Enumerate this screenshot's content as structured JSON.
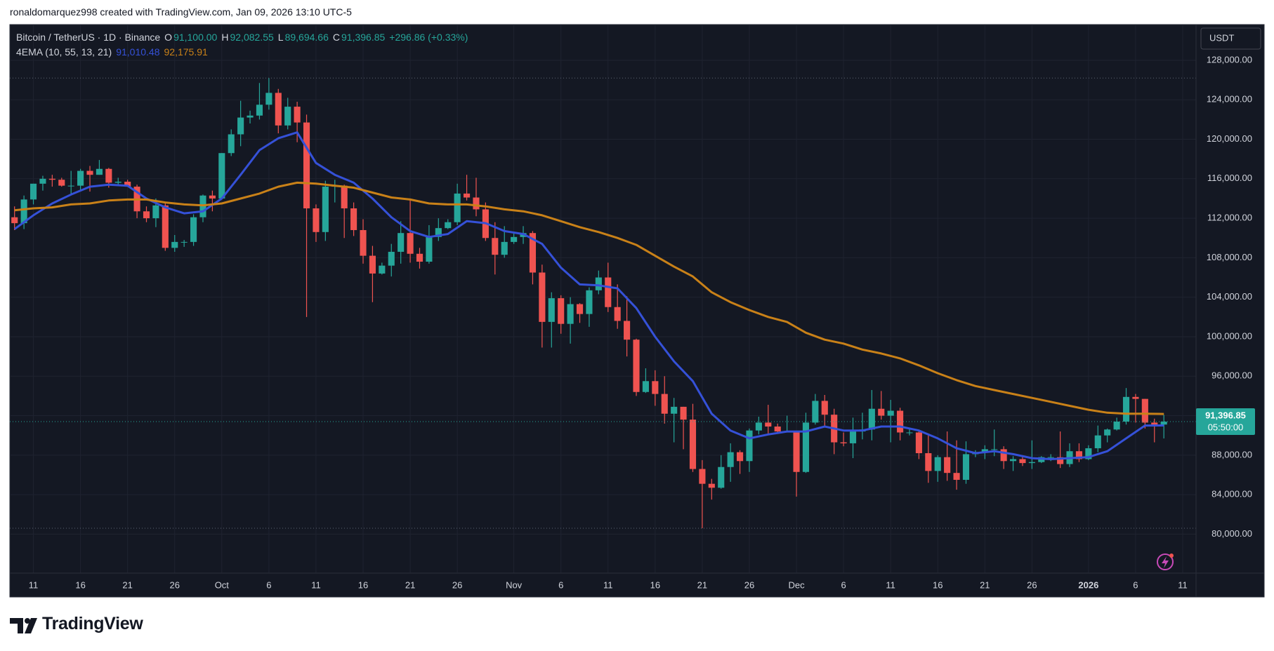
{
  "header": {
    "attribution": "ronaldomarquez998 created with TradingView.com, Jan 09, 2026 13:10 UTC-5"
  },
  "chart_data": {
    "type": "candlestick",
    "symbol": "Bitcoin / TetherUS · 1D · Binance",
    "legend": {
      "o_label": "O",
      "open": "91,100.00",
      "h_label": "H",
      "high": "92,082.55",
      "l_label": "L",
      "low": "89,694.66",
      "c_label": "C",
      "close": "91,396.85",
      "change": "+296.86 (+0.33%)"
    },
    "indicator": "4EMA (10, 55, 13, 21)",
    "indicator_values": [
      "91,010.48",
      "92,175.91"
    ],
    "currency": "USDT",
    "price_label": "91,396.85",
    "countdown": "05:50:00",
    "up_color": "#26a69a",
    "down_color": "#ef5350",
    "grid": true,
    "x": [
      "2025-09-09",
      "2025-09-10",
      "2025-09-11",
      "2025-09-12",
      "2025-09-13",
      "2025-09-14",
      "2025-09-15",
      "2025-09-16",
      "2025-09-17",
      "2025-09-18",
      "2025-09-19",
      "2025-09-20",
      "2025-09-21",
      "2025-09-22",
      "2025-09-23",
      "2025-09-24",
      "2025-09-25",
      "2025-09-26",
      "2025-09-27",
      "2025-09-28",
      "2025-09-29",
      "2025-09-30",
      "2025-10-01",
      "2025-10-02",
      "2025-10-03",
      "2025-10-04",
      "2025-10-05",
      "2025-10-06",
      "2025-10-07",
      "2025-10-08",
      "2025-10-09",
      "2025-10-10",
      "2025-10-11",
      "2025-10-12",
      "2025-10-13",
      "2025-10-14",
      "2025-10-15",
      "2025-10-16",
      "2025-10-17",
      "2025-10-18",
      "2025-10-19",
      "2025-10-20",
      "2025-10-21",
      "2025-10-22",
      "2025-10-23",
      "2025-10-24",
      "2025-10-25",
      "2025-10-26",
      "2025-10-27",
      "2025-10-28",
      "2025-10-29",
      "2025-10-30",
      "2025-10-31",
      "2025-11-01",
      "2025-11-02",
      "2025-11-03",
      "2025-11-04",
      "2025-11-05",
      "2025-11-06",
      "2025-11-07",
      "2025-11-08",
      "2025-11-09",
      "2025-11-10",
      "2025-11-11",
      "2025-11-12",
      "2025-11-13",
      "2025-11-14",
      "2025-11-15",
      "2025-11-16",
      "2025-11-17",
      "2025-11-18",
      "2025-11-19",
      "2025-11-20",
      "2025-11-21",
      "2025-11-22",
      "2025-11-23",
      "2025-11-24",
      "2025-11-25",
      "2025-11-26",
      "2025-11-27",
      "2025-11-28",
      "2025-11-29",
      "2025-11-30",
      "2025-12-01",
      "2025-12-02",
      "2025-12-03",
      "2025-12-04",
      "2025-12-05",
      "2025-12-06",
      "2025-12-07",
      "2025-12-08",
      "2025-12-09",
      "2025-12-10",
      "2025-12-11",
      "2025-12-12",
      "2025-12-13",
      "2025-12-14",
      "2025-12-15",
      "2025-12-16",
      "2025-12-17",
      "2025-12-18",
      "2025-12-19",
      "2025-12-20",
      "2025-12-21",
      "2025-12-22",
      "2025-12-23",
      "2025-12-24",
      "2025-12-25",
      "2025-12-26",
      "2025-12-27",
      "2025-12-28",
      "2025-12-29",
      "2025-12-30",
      "2025-12-31",
      "2026-01-01",
      "2026-01-02",
      "2026-01-03",
      "2026-01-04",
      "2026-01-05",
      "2026-01-06",
      "2026-01-07",
      "2026-01-08",
      "2026-01-09"
    ],
    "open": [
      112100,
      111500,
      113900,
      115500,
      116000,
      115900,
      115300,
      115300,
      116800,
      116400,
      117000,
      115600,
      115700,
      115200,
      112700,
      112000,
      113300,
      109000,
      109600,
      109600,
      112100,
      114300,
      114000,
      118600,
      120500,
      122200,
      122400,
      123500,
      124700,
      121400,
      123300,
      121700,
      113000,
      110600,
      115200,
      115300,
      113000,
      110800,
      108200,
      106400,
      107200,
      108600,
      110500,
      108400,
      107600,
      110100,
      111000,
      111600,
      114500,
      114100,
      112900,
      110000,
      108300,
      109600,
      110100,
      110500,
      106500,
      101500,
      103900,
      101300,
      103300,
      102300,
      104700,
      106000,
      103000,
      101600,
      99700,
      94400,
      95500,
      94200,
      92200,
      92900,
      91600,
      86600,
      85100,
      84700,
      86800,
      88300,
      87400,
      90500,
      91300,
      90900,
      90400,
      90400,
      86300,
      91300,
      93500,
      92100,
      89300,
      89200,
      90400,
      90600,
      92700,
      92000,
      92500,
      90300,
      90300,
      88200,
      86400,
      87800,
      86200,
      85500,
      88100,
      88300,
      88600,
      88600,
      87400,
      87600,
      87200,
      87300,
      87800,
      87800,
      87100,
      88400,
      87600,
      88700,
      90000,
      90600,
      91400,
      93900,
      93700,
      91300,
      91100
    ],
    "high": [
      113200,
      114300,
      115500,
      116300,
      116400,
      116100,
      116800,
      117000,
      117300,
      117900,
      117100,
      116100,
      115900,
      115400,
      113200,
      114000,
      113500,
      110300,
      109800,
      112400,
      114400,
      114800,
      118600,
      121000,
      123900,
      122900,
      125700,
      126200,
      125100,
      124200,
      123800,
      122500,
      113400,
      115800,
      115900,
      115400,
      113600,
      111900,
      109200,
      107500,
      109400,
      111700,
      114000,
      109000,
      111300,
      112000,
      111900,
      115500,
      116400,
      116100,
      113600,
      111600,
      111200,
      110600,
      111200,
      110700,
      107300,
      104500,
      104200,
      104000,
      103400,
      105000,
      106700,
      107500,
      105300,
      104100,
      99800,
      96800,
      96600,
      96000,
      93800,
      92900,
      93200,
      87500,
      85600,
      88000,
      89200,
      88500,
      90700,
      91900,
      93100,
      91200,
      92000,
      90400,
      92300,
      94200,
      94100,
      92700,
      90300,
      91800,
      92300,
      94600,
      94500,
      93600,
      92800,
      90700,
      90500,
      90000,
      88000,
      90400,
      89500,
      89400,
      88500,
      89000,
      90600,
      88900,
      87900,
      88000,
      89500,
      87900,
      88100,
      90400,
      89200,
      89200,
      89000,
      91000,
      90700,
      91800,
      94800,
      94200,
      93700,
      91700,
      92082.55
    ],
    "low": [
      110800,
      110900,
      113400,
      114800,
      115200,
      115200,
      114400,
      114800,
      114700,
      116400,
      115100,
      115400,
      115200,
      112000,
      111600,
      111100,
      108700,
      108600,
      109100,
      109200,
      111600,
      112700,
      113900,
      118300,
      119300,
      121600,
      122000,
      123000,
      120600,
      121000,
      119700,
      102000,
      109600,
      109700,
      113600,
      110000,
      110200,
      107400,
      103500,
      106300,
      106100,
      107400,
      107500,
      106900,
      107400,
      109700,
      110900,
      111300,
      113800,
      112200,
      109700,
      106300,
      108000,
      109400,
      109400,
      105300,
      98900,
      98900,
      100300,
      99300,
      101400,
      101000,
      104300,
      102500,
      100800,
      98000,
      94000,
      94300,
      93000,
      91200,
      89300,
      88600,
      86300,
      80600,
      83500,
      84600,
      85300,
      86100,
      86300,
      90100,
      90200,
      90300,
      90300,
      83800,
      86200,
      91100,
      90900,
      88100,
      88900,
      87700,
      89600,
      89500,
      91600,
      89300,
      89500,
      90000,
      87600,
      85200,
      85300,
      85400,
      84500,
      85100,
      87800,
      87600,
      87900,
      86600,
      86400,
      86900,
      86600,
      87200,
      87400,
      86700,
      86800,
      87300,
      87500,
      88300,
      89300,
      90500,
      91100,
      91300,
      90700,
      89300,
      89694.66
    ],
    "close": [
      111500,
      113900,
      115500,
      116000,
      115900,
      115300,
      115300,
      116800,
      116400,
      117000,
      115600,
      115700,
      115200,
      112700,
      112000,
      113300,
      109000,
      109600,
      109600,
      112100,
      114300,
      114000,
      118600,
      120500,
      122200,
      122400,
      123500,
      124700,
      121400,
      123300,
      121700,
      113000,
      110600,
      115200,
      115300,
      113000,
      110800,
      108200,
      106400,
      107200,
      108600,
      110500,
      108400,
      107600,
      110100,
      111000,
      111600,
      114500,
      114100,
      112900,
      110000,
      108300,
      109600,
      110100,
      110500,
      106500,
      101500,
      103900,
      101300,
      103300,
      102300,
      104700,
      106000,
      103000,
      101600,
      99700,
      94400,
      95500,
      94200,
      92200,
      92900,
      91600,
      86600,
      85100,
      84700,
      86800,
      88300,
      87400,
      90500,
      91300,
      90900,
      90400,
      90400,
      86300,
      91300,
      93500,
      92100,
      89300,
      89200,
      90400,
      90600,
      92700,
      92000,
      92500,
      90300,
      90300,
      88200,
      86400,
      87800,
      86200,
      85500,
      88100,
      88300,
      88600,
      88600,
      87400,
      87600,
      87200,
      87300,
      87800,
      87800,
      87100,
      88400,
      87600,
      88700,
      90000,
      90600,
      91400,
      93900,
      93700,
      91300,
      91100,
      91396.85
    ],
    "lines": {
      "x": [
        "2025-09-09",
        "2025-09-11",
        "2025-09-13",
        "2025-09-15",
        "2025-09-17",
        "2025-09-19",
        "2025-09-21",
        "2025-09-23",
        "2025-09-25",
        "2025-09-27",
        "2025-09-29",
        "2025-10-01",
        "2025-10-03",
        "2025-10-05",
        "2025-10-07",
        "2025-10-09",
        "2025-10-11",
        "2025-10-13",
        "2025-10-15",
        "2025-10-17",
        "2025-10-19",
        "2025-10-21",
        "2025-10-23",
        "2025-10-25",
        "2025-10-27",
        "2025-10-29",
        "2025-10-31",
        "2025-11-02",
        "2025-11-04",
        "2025-11-06",
        "2025-11-08",
        "2025-11-10",
        "2025-11-12",
        "2025-11-14",
        "2025-11-16",
        "2025-11-18",
        "2025-11-20",
        "2025-11-22",
        "2025-11-24",
        "2025-11-26",
        "2025-11-28",
        "2025-11-30",
        "2025-12-02",
        "2025-12-04",
        "2025-12-06",
        "2025-12-08",
        "2025-12-10",
        "2025-12-12",
        "2025-12-14",
        "2025-12-16",
        "2025-12-18",
        "2025-12-20",
        "2025-12-22",
        "2025-12-24",
        "2025-12-26",
        "2025-12-28",
        "2025-12-30",
        "2026-01-01",
        "2026-01-03",
        "2026-01-05",
        "2026-01-07",
        "2026-01-09"
      ],
      "series": [
        {
          "color": "#3551d8",
          "values": [
            110900,
            112300,
            113500,
            114400,
            115200,
            115400,
            115300,
            114000,
            113100,
            112500,
            112700,
            114000,
            116400,
            118900,
            120100,
            120700,
            117600,
            116400,
            115600,
            114000,
            112100,
            110700,
            110100,
            110400,
            111700,
            111500,
            110700,
            110400,
            109400,
            107000,
            105300,
            105200,
            104900,
            102900,
            100000,
            97500,
            95500,
            92200,
            90500,
            89700,
            90100,
            90400,
            90400,
            90900,
            90500,
            90500,
            90900,
            90900,
            90500,
            89700,
            88700,
            88200,
            88400,
            88100,
            87700,
            87600,
            87700,
            87800,
            88400,
            89700,
            91000,
            91010.48
          ]
        },
        {
          "color": "#c98118",
          "values": [
            112800,
            113000,
            113100,
            113400,
            113500,
            113800,
            113900,
            113900,
            113600,
            113400,
            113300,
            113500,
            114000,
            114500,
            115200,
            115600,
            115500,
            115300,
            115100,
            114600,
            114100,
            113900,
            113500,
            113400,
            113400,
            113200,
            112900,
            112700,
            112300,
            111700,
            111100,
            110600,
            110000,
            109300,
            108200,
            107100,
            106100,
            104500,
            103500,
            102700,
            102000,
            101500,
            100400,
            99700,
            99300,
            98700,
            98300,
            97800,
            97100,
            96300,
            95600,
            95000,
            94600,
            94200,
            93800,
            93400,
            93000,
            92600,
            92300,
            92200,
            92200,
            92175.91
          ]
        }
      ]
    },
    "xlim": [
      "2025-09-08T12:00:00Z",
      "2026-01-12T10:00:00Z"
    ],
    "xticks": [
      {
        "value": "2025-09-11",
        "label": "11"
      },
      {
        "value": "2025-09-16",
        "label": "16"
      },
      {
        "value": "2025-09-21",
        "label": "21"
      },
      {
        "value": "2025-09-26",
        "label": "26"
      },
      {
        "value": "2025-10-01",
        "label": "Oct"
      },
      {
        "value": "2025-10-06",
        "label": "6"
      },
      {
        "value": "2025-10-11",
        "label": "11"
      },
      {
        "value": "2025-10-16",
        "label": "16"
      },
      {
        "value": "2025-10-21",
        "label": "21"
      },
      {
        "value": "2025-10-26",
        "label": "26"
      },
      {
        "value": "2025-11-01",
        "label": "Nov"
      },
      {
        "value": "2025-11-06",
        "label": "6"
      },
      {
        "value": "2025-11-11",
        "label": "11"
      },
      {
        "value": "2025-11-16",
        "label": "16"
      },
      {
        "value": "2025-11-21",
        "label": "21"
      },
      {
        "value": "2025-11-26",
        "label": "26"
      },
      {
        "value": "2025-12-01",
        "label": "Dec"
      },
      {
        "value": "2025-12-06",
        "label": "6"
      },
      {
        "value": "2025-12-11",
        "label": "11"
      },
      {
        "value": "2025-12-16",
        "label": "16"
      },
      {
        "value": "2025-12-21",
        "label": "21"
      },
      {
        "value": "2025-12-26",
        "label": "26"
      },
      {
        "value": "2026-01-01",
        "label": "2026"
      },
      {
        "value": "2026-01-06",
        "label": "6"
      },
      {
        "value": "2026-01-11",
        "label": "11"
      }
    ],
    "ylim": [
      76050,
      131620
    ],
    "yticks": [
      {
        "value": 80000,
        "label": "80,000.00"
      },
      {
        "value": 84000,
        "label": "84,000.00"
      },
      {
        "value": 88000,
        "label": "88,000.00"
      },
      {
        "value": 92000,
        "label": "92,000.00"
      },
      {
        "value": 96000,
        "label": "96,000.00"
      },
      {
        "value": 100000,
        "label": "100,000.00"
      },
      {
        "value": 104000,
        "label": "104,000.00"
      },
      {
        "value": 108000,
        "label": "108,000.00"
      },
      {
        "value": 112000,
        "label": "112,000.00"
      },
      {
        "value": 116000,
        "label": "116,000.00"
      },
      {
        "value": 120000,
        "label": "120,000.00"
      },
      {
        "value": 124000,
        "label": "124,000.00"
      },
      {
        "value": 128000,
        "label": "128,000.00"
      }
    ]
  },
  "footer": {
    "logo": "TradingView"
  }
}
